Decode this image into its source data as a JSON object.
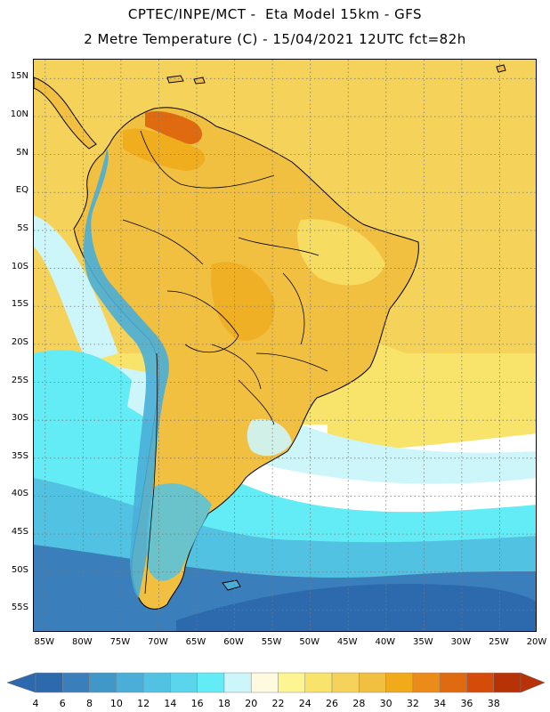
{
  "header": {
    "line1": "CPTEC/INPE/MCT -  Eta Model 15km - GFS",
    "line2": "2 Metre Temperature (C) - 15/04/2021 12UTC fct=82h"
  },
  "map": {
    "lat_labels": [
      "15N",
      "10N",
      "5N",
      "EQ",
      "5S",
      "10S",
      "15S",
      "20S",
      "25S",
      "30S",
      "35S",
      "40S",
      "45S",
      "50S",
      "55S"
    ],
    "lon_labels": [
      "85W",
      "80W",
      "75W",
      "70W",
      "65W",
      "60W",
      "55W",
      "50W",
      "45W",
      "40W",
      "35W",
      "30W",
      "25W",
      "20W"
    ],
    "lat_range": [
      17.5,
      -58
    ],
    "lon_range": [
      -86.5,
      -20
    ]
  },
  "legend": {
    "ticks": [
      "4",
      "6",
      "8",
      "10",
      "12",
      "14",
      "16",
      "18",
      "20",
      "22",
      "24",
      "26",
      "28",
      "30",
      "32",
      "34",
      "36",
      "38"
    ],
    "colors": [
      "#2c69ad",
      "#3a7fbb",
      "#3f98c8",
      "#4aaed8",
      "#52c2e3",
      "#5ad5ec",
      "#64ecf6",
      "#cdf6fb",
      "#fefae0",
      "#fdf492",
      "#f8e46a",
      "#f5d35a",
      "#f1c041",
      "#f0aa1a",
      "#ea8b1a",
      "#df6a0f",
      "#d44b0a",
      "#b83208"
    ],
    "low_color": "#2c69ad",
    "high_color": "#b83208"
  },
  "palette": {
    "ocean_warm": "#f5d35a",
    "ocean_warm_pale": "#f8e46a",
    "ocean_cool": "#64ecf6",
    "ocean_mid": "#52c2e3",
    "ocean_cold": "#3a7fbb",
    "ocean_coldest": "#2c69ad",
    "land_main": "#f1c041",
    "land_hot": "#df6a0f",
    "andes_cold": "#4aaed8"
  }
}
